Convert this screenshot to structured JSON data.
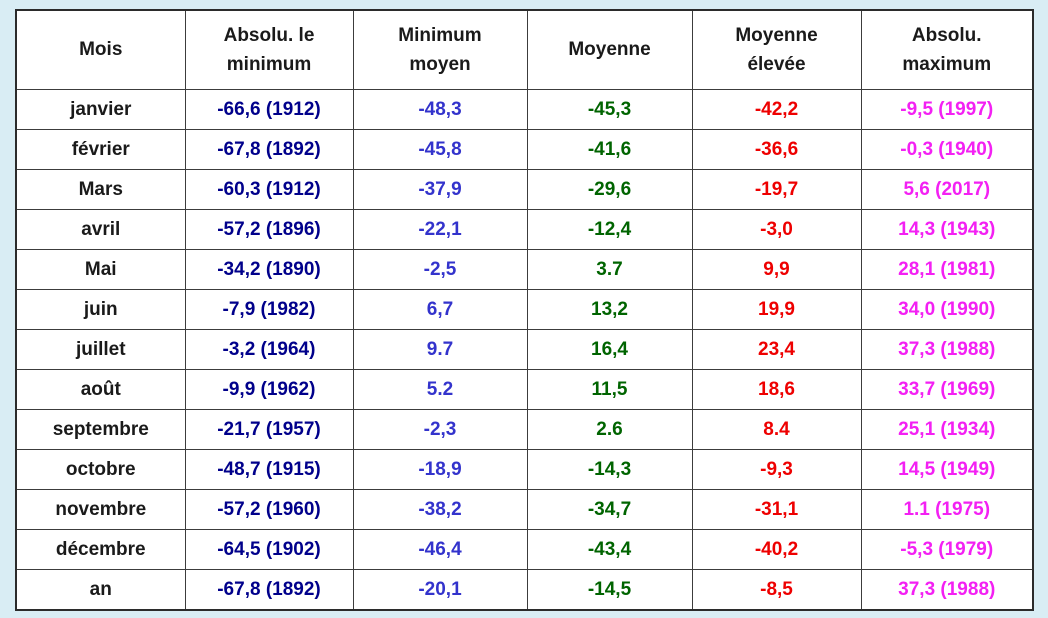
{
  "page": {
    "background_color": "#d9edf4",
    "cell_background": "#ffffff",
    "border_color": "#3c3c3c"
  },
  "table": {
    "header": [
      "Mois",
      "Absolu. le\nminimum",
      "Minimum\nmoyen",
      "Moyenne",
      "Moyenne\nélevée",
      "Absolu.\nmaximum"
    ],
    "field_order": [
      "mois",
      "abs_min",
      "min_moyen",
      "moyenne",
      "moyenne_elevee",
      "abs_max"
    ],
    "colors": {
      "mois": "#1a1a1a",
      "abs_min": "#00008b",
      "min_moyen": "#3333cc",
      "moyenne": "#006400",
      "moyenne_elevee": "#ee0000",
      "abs_max": "#f320f3"
    },
    "rows": [
      {
        "mois": "janvier",
        "abs_min": "-66,6 (1912)",
        "min_moyen": "-48,3",
        "moyenne": "-45,3",
        "moyenne_elevee": "-42,2",
        "abs_max": "-9,5 (1997)"
      },
      {
        "mois": "février",
        "abs_min": "-67,8 (1892)",
        "min_moyen": "-45,8",
        "moyenne": "-41,6",
        "moyenne_elevee": "-36,6",
        "abs_max": "-0,3 (1940)"
      },
      {
        "mois": "Mars",
        "abs_min": "-60,3 (1912)",
        "min_moyen": "-37,9",
        "moyenne": "-29,6",
        "moyenne_elevee": "-19,7",
        "abs_max": "5,6 (2017)"
      },
      {
        "mois": "avril",
        "abs_min": "-57,2 (1896)",
        "min_moyen": "-22,1",
        "moyenne": "-12,4",
        "moyenne_elevee": "-3,0",
        "abs_max": "14,3 (1943)"
      },
      {
        "mois": "Mai",
        "abs_min": "-34,2 (1890)",
        "min_moyen": "-2,5",
        "moyenne": "3.7",
        "moyenne_elevee": "9,9",
        "abs_max": "28,1 (1981)"
      },
      {
        "mois": "juin",
        "abs_min": "-7,9 (1982)",
        "min_moyen": "6,7",
        "moyenne": "13,2",
        "moyenne_elevee": "19,9",
        "abs_max": "34,0 (1990)"
      },
      {
        "mois": "juillet",
        "abs_min": "-3,2 (1964)",
        "min_moyen": "9.7",
        "moyenne": "16,4",
        "moyenne_elevee": "23,4",
        "abs_max": "37,3 (1988)"
      },
      {
        "mois": "août",
        "abs_min": "-9,9 (1962)",
        "min_moyen": "5.2",
        "moyenne": "11,5",
        "moyenne_elevee": "18,6",
        "abs_max": "33,7 (1969)"
      },
      {
        "mois": "septembre",
        "abs_min": "-21,7 (1957)",
        "min_moyen": "-2,3",
        "moyenne": "2.6",
        "moyenne_elevee": "8.4",
        "abs_max": "25,1 (1934)"
      },
      {
        "mois": "octobre",
        "abs_min": "-48,7 (1915)",
        "min_moyen": "-18,9",
        "moyenne": "-14,3",
        "moyenne_elevee": "-9,3",
        "abs_max": "14,5 (1949)"
      },
      {
        "mois": "novembre",
        "abs_min": "-57,2 (1960)",
        "min_moyen": "-38,2",
        "moyenne": "-34,7",
        "moyenne_elevee": "-31,1",
        "abs_max": "1.1 (1975)"
      },
      {
        "mois": "décembre",
        "abs_min": "-64,5 (1902)",
        "min_moyen": "-46,4",
        "moyenne": "-43,4",
        "moyenne_elevee": "-40,2",
        "abs_max": "-5,3 (1979)"
      },
      {
        "mois": "an",
        "abs_min": "-67,8 (1892)",
        "min_moyen": "-20,1",
        "moyenne": "-14,5",
        "moyenne_elevee": "-8,5",
        "abs_max": "37,3 (1988)"
      }
    ]
  },
  "chart_data": {
    "type": "table",
    "title": "",
    "columns": [
      "Mois",
      "Absolu. le minimum",
      "Minimum moyen",
      "Moyenne",
      "Moyenne élevée",
      "Absolu. maximum"
    ],
    "categories": [
      "janvier",
      "février",
      "Mars",
      "avril",
      "Mai",
      "juin",
      "juillet",
      "août",
      "septembre",
      "octobre",
      "novembre",
      "décembre",
      "an"
    ],
    "series": [
      {
        "name": "Absolu. le minimum",
        "values": [
          -66.6,
          -67.8,
          -60.3,
          -57.2,
          -34.2,
          -7.9,
          -3.2,
          -9.9,
          -21.7,
          -48.7,
          -57.2,
          -64.5,
          -67.8
        ],
        "record_years": [
          1912,
          1892,
          1912,
          1896,
          1890,
          1982,
          1964,
          1962,
          1957,
          1915,
          1960,
          1902,
          1892
        ],
        "color": "#00008b"
      },
      {
        "name": "Minimum moyen",
        "values": [
          -48.3,
          -45.8,
          -37.9,
          -22.1,
          -2.5,
          6.7,
          9.7,
          5.2,
          -2.3,
          -18.9,
          -38.2,
          -46.4,
          -20.1
        ],
        "color": "#3333cc"
      },
      {
        "name": "Moyenne",
        "values": [
          -45.3,
          -41.6,
          -29.6,
          -12.4,
          3.7,
          13.2,
          16.4,
          11.5,
          2.6,
          -14.3,
          -34.7,
          -43.4,
          -14.5
        ],
        "color": "#006400"
      },
      {
        "name": "Moyenne élevée",
        "values": [
          -42.2,
          -36.6,
          -19.7,
          -3.0,
          9.9,
          19.9,
          23.4,
          18.6,
          8.4,
          -9.3,
          -31.1,
          -40.2,
          -8.5
        ],
        "color": "#ee0000"
      },
      {
        "name": "Absolu. maximum",
        "values": [
          -9.5,
          -0.3,
          5.6,
          14.3,
          28.1,
          34.0,
          37.3,
          33.7,
          25.1,
          14.5,
          1.1,
          -5.3,
          37.3
        ],
        "record_years": [
          1997,
          1940,
          2017,
          1943,
          1981,
          1990,
          1988,
          1969,
          1934,
          1949,
          1975,
          1979,
          1988
        ],
        "color": "#f320f3"
      }
    ]
  }
}
